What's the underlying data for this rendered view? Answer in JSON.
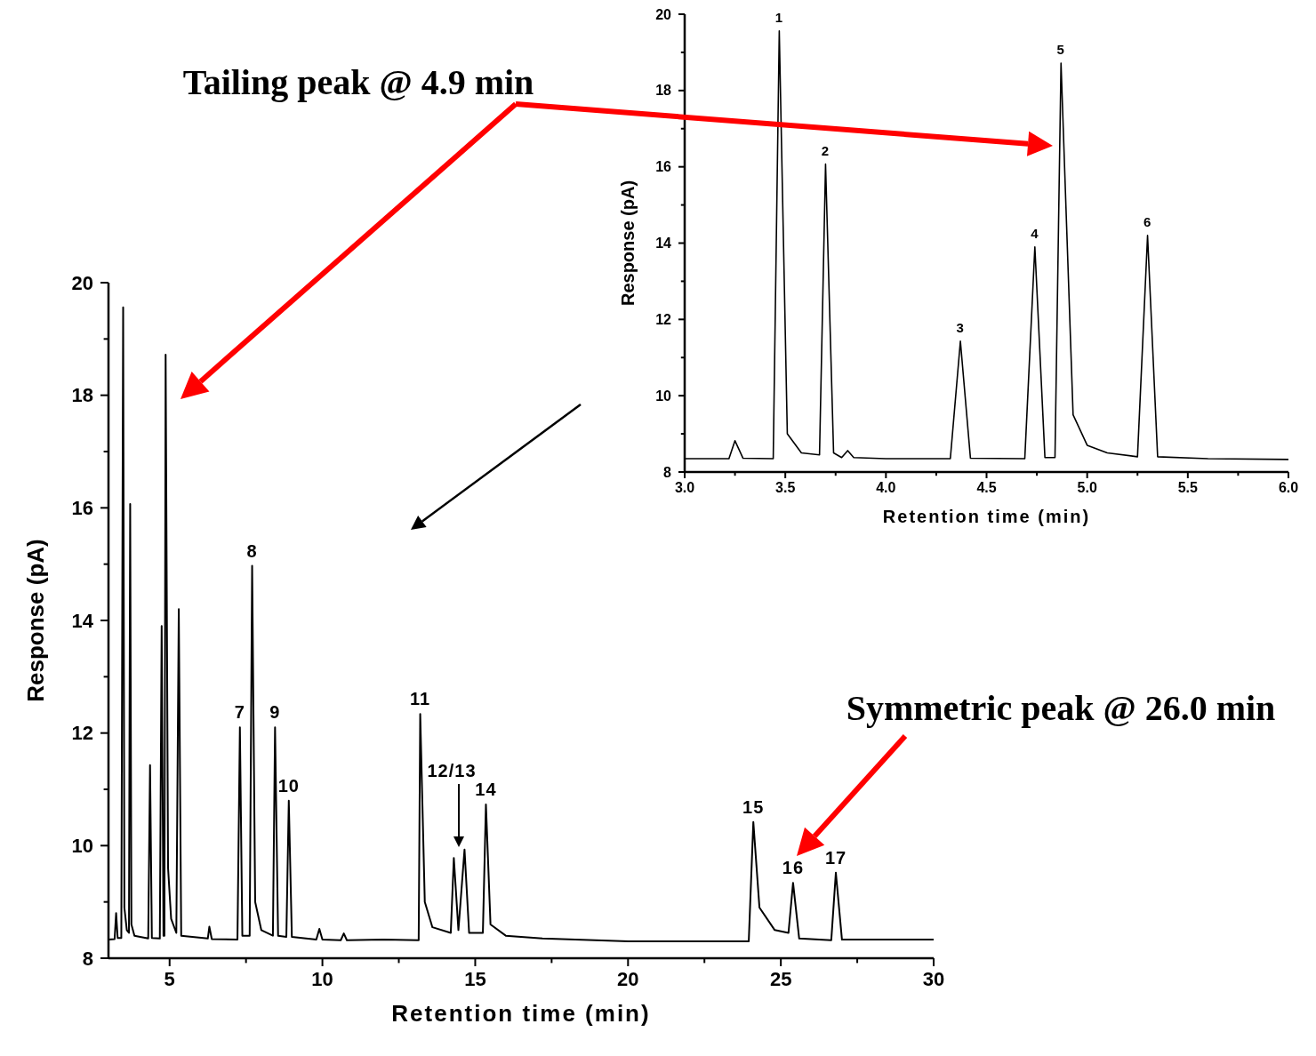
{
  "chart_data": [
    {
      "type": "line",
      "xlabel": "Retention time (min)",
      "ylabel": "Response (pA)",
      "xlim": [
        3,
        30
      ],
      "ylim": [
        8,
        20
      ],
      "xticks": [
        5,
        {
          "value": 7.5,
          "label": null
        },
        10,
        {
          "value": 12.5,
          "label": null
        },
        15,
        {
          "value": 17.5,
          "label": null
        },
        20,
        {
          "value": 22.5,
          "label": null
        },
        25,
        {
          "value": 27.5,
          "label": null
        },
        30
      ],
      "yticks": [
        8,
        {
          "value": 9,
          "label": null
        },
        10,
        {
          "value": 11,
          "label": null
        },
        12,
        {
          "value": 13,
          "label": null
        },
        14,
        {
          "value": 15,
          "label": null
        },
        16,
        {
          "value": 17,
          "label": null
        },
        18,
        {
          "value": 19,
          "label": null
        },
        20
      ],
      "grid": false,
      "marker": "none",
      "line_style": "solid",
      "series": [
        {
          "color": "#000000",
          "x": [
            3.0,
            3.2,
            3.25,
            3.3,
            3.42,
            3.48,
            3.52,
            3.6,
            3.67,
            3.71,
            3.75,
            3.85,
            4.3,
            4.36,
            4.42,
            4.68,
            4.74,
            4.8,
            4.83,
            4.87,
            4.95,
            5.05,
            5.22,
            5.3,
            5.38,
            6.25,
            6.3,
            6.38,
            7.22,
            7.3,
            7.38,
            7.62,
            7.7,
            7.8,
            8.0,
            8.38,
            8.45,
            8.55,
            8.82,
            8.9,
            9.0,
            9.8,
            9.9,
            10.0,
            10.6,
            10.7,
            10.8,
            12.0,
            13.15,
            13.2,
            13.35,
            13.6,
            14.2,
            14.3,
            14.45,
            14.65,
            14.8,
            15.25,
            15.35,
            15.5,
            16.0,
            17.2,
            20.0,
            23.95,
            24.1,
            24.3,
            24.8,
            25.25,
            25.4,
            25.6,
            26.65,
            26.8,
            27.0,
            30.0
          ],
          "values": [
            8.33,
            8.34,
            8.8,
            8.36,
            8.36,
            19.56,
            8.9,
            8.5,
            8.45,
            16.07,
            8.6,
            8.4,
            8.35,
            11.43,
            8.36,
            8.35,
            13.9,
            8.4,
            8.4,
            18.72,
            9.6,
            8.7,
            8.45,
            14.2,
            8.4,
            8.35,
            8.56,
            8.34,
            8.33,
            12.1,
            8.4,
            8.4,
            14.97,
            9.0,
            8.5,
            8.4,
            12.1,
            8.4,
            8.38,
            10.8,
            8.38,
            8.33,
            8.52,
            8.33,
            8.32,
            8.44,
            8.32,
            8.33,
            8.32,
            12.34,
            9.0,
            8.55,
            8.45,
            9.78,
            8.5,
            9.93,
            8.45,
            8.45,
            10.73,
            8.6,
            8.4,
            8.35,
            8.3,
            8.3,
            10.42,
            8.9,
            8.5,
            8.45,
            9.34,
            8.35,
            8.32,
            9.52,
            8.33,
            8.33
          ]
        }
      ],
      "annotations": [
        "Tailing peak @ 4.9 min",
        "Symmetric peak @ 26.0 min",
        {
          "text": "7",
          "x": 7.3,
          "y": 12.1
        },
        {
          "text": "8",
          "x": 7.7,
          "y": 14.97
        },
        {
          "text": "9",
          "x": 8.45,
          "y": 12.1
        },
        {
          "text": "10",
          "x": 8.9,
          "y": 10.8
        },
        {
          "text": "11",
          "x": 13.2,
          "y": 12.34
        },
        "12/13",
        {
          "text": "14",
          "x": 15.35,
          "y": 10.73
        },
        {
          "text": "15",
          "x": 24.1,
          "y": 10.42
        },
        {
          "text": "16",
          "x": 25.4,
          "y": 9.34
        },
        {
          "text": "17",
          "x": 26.8,
          "y": 9.52
        }
      ]
    },
    {
      "type": "line",
      "xlabel": "Retention time (min)",
      "ylabel": "Response (pA)",
      "xlim": [
        3,
        6
      ],
      "ylim": [
        8,
        20
      ],
      "xticks": [
        {
          "value": 3,
          "label": "3.0"
        },
        {
          "value": 3.25,
          "label": null
        },
        {
          "value": 3.5,
          "label": "3.5"
        },
        {
          "value": 3.75,
          "label": null
        },
        {
          "value": 4,
          "label": "4.0"
        },
        {
          "value": 4.25,
          "label": null
        },
        {
          "value": 4.5,
          "label": "4.5"
        },
        {
          "value": 4.75,
          "label": null
        },
        {
          "value": 5,
          "label": "5.0"
        },
        {
          "value": 5.25,
          "label": null
        },
        {
          "value": 5.5,
          "label": "5.5"
        },
        {
          "value": 5.75,
          "label": null
        },
        {
          "value": 6,
          "label": "6.0"
        }
      ],
      "yticks": [
        8,
        {
          "value": 9,
          "label": null
        },
        10,
        {
          "value": 11,
          "label": null
        },
        12,
        {
          "value": 13,
          "label": null
        },
        14,
        {
          "value": 15,
          "label": null
        },
        16,
        {
          "value": 17,
          "label": null
        },
        18,
        {
          "value": 19,
          "label": null
        },
        20
      ],
      "grid": false,
      "marker": "none",
      "line_style": "solid",
      "series": [
        {
          "color": "#000000",
          "x": [
            3.0,
            3.22,
            3.25,
            3.29,
            3.44,
            3.47,
            3.51,
            3.58,
            3.67,
            3.7,
            3.74,
            3.78,
            3.81,
            3.84,
            4.0,
            4.32,
            4.37,
            4.42,
            4.69,
            4.74,
            4.79,
            4.84,
            4.87,
            4.93,
            5.0,
            5.1,
            5.25,
            5.3,
            5.35,
            5.6,
            6.0
          ],
          "values": [
            8.35,
            8.35,
            8.82,
            8.36,
            8.35,
            19.56,
            9.0,
            8.5,
            8.45,
            16.07,
            8.5,
            8.38,
            8.56,
            8.38,
            8.35,
            8.35,
            11.43,
            8.36,
            8.35,
            13.9,
            8.38,
            8.38,
            18.72,
            9.5,
            8.7,
            8.5,
            8.4,
            14.2,
            8.4,
            8.35,
            8.33
          ]
        }
      ],
      "annotations": [
        {
          "text": "1",
          "x": 3.47,
          "y": 19.56
        },
        {
          "text": "2",
          "x": 3.7,
          "y": 16.07
        },
        {
          "text": "3",
          "x": 4.37,
          "y": 11.43
        },
        {
          "text": "4",
          "x": 4.74,
          "y": 13.9
        },
        {
          "text": "5",
          "x": 4.87,
          "y": 18.72
        },
        {
          "text": "6",
          "x": 5.3,
          "y": 14.2
        }
      ]
    }
  ]
}
